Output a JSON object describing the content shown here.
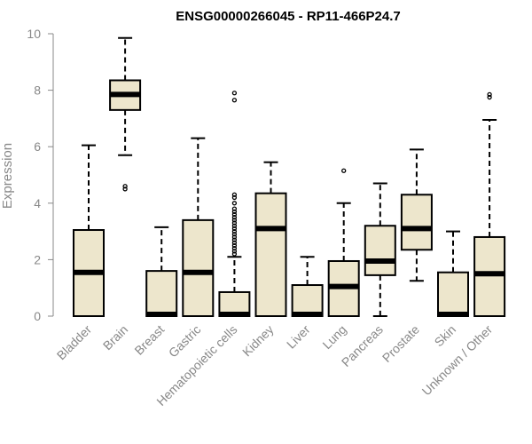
{
  "chart_data": {
    "type": "box",
    "title": "ENSG00000266045 - RP11-466P24.7",
    "xlabel": "",
    "ylabel": "Expression",
    "ylim": [
      0,
      10
    ],
    "yticks": [
      0,
      2,
      4,
      6,
      8,
      10
    ],
    "box_fill": "#ede6cc",
    "box_stroke": "#000000",
    "axis_color": "#888888",
    "categories": [
      "Bladder",
      "Brain",
      "Breast",
      "Gastric",
      "Hematopoietic cells",
      "Kidney",
      "Liver",
      "Lung",
      "Pancreas",
      "Prostate",
      "Skin",
      "Unknown / Other"
    ],
    "boxes": [
      {
        "name": "Bladder",
        "whisker_low": 0,
        "q1": 0,
        "median": 1.55,
        "q3": 3.05,
        "whisker_high": 6.05,
        "outliers": []
      },
      {
        "name": "Brain",
        "whisker_low": 5.7,
        "q1": 7.3,
        "median": 7.85,
        "q3": 8.35,
        "whisker_high": 9.85,
        "outliers": [
          4.5,
          4.6
        ]
      },
      {
        "name": "Breast",
        "whisker_low": 0,
        "q1": 0,
        "median": 0.02,
        "q3": 1.6,
        "whisker_high": 3.15,
        "outliers": []
      },
      {
        "name": "Gastric",
        "whisker_low": 0,
        "q1": 0,
        "median": 1.55,
        "q3": 3.4,
        "whisker_high": 6.3,
        "outliers": []
      },
      {
        "name": "Hematopoietic cells",
        "whisker_low": 0,
        "q1": 0,
        "median": 0.02,
        "q3": 0.85,
        "whisker_high": 2.1,
        "outliers": [
          2.2,
          2.3,
          2.4,
          2.5,
          2.6,
          2.7,
          2.8,
          2.9,
          3.0,
          3.1,
          3.2,
          3.3,
          3.4,
          3.5,
          3.6,
          3.7,
          3.8,
          4.0,
          4.2,
          4.3,
          7.65,
          7.9
        ]
      },
      {
        "name": "Kidney",
        "whisker_low": 0,
        "q1": 0,
        "median": 3.1,
        "q3": 4.35,
        "whisker_high": 5.45,
        "outliers": []
      },
      {
        "name": "Liver",
        "whisker_low": 0,
        "q1": 0,
        "median": 0.02,
        "q3": 1.1,
        "whisker_high": 2.1,
        "outliers": []
      },
      {
        "name": "Lung",
        "whisker_low": 0,
        "q1": 0,
        "median": 1.05,
        "q3": 1.95,
        "whisker_high": 4.0,
        "outliers": [
          5.15
        ]
      },
      {
        "name": "Pancreas",
        "whisker_low": 0,
        "q1": 1.45,
        "median": 1.95,
        "q3": 3.2,
        "whisker_high": 4.7,
        "outliers": []
      },
      {
        "name": "Prostate",
        "whisker_low": 1.25,
        "q1": 2.35,
        "median": 3.1,
        "q3": 4.3,
        "whisker_high": 5.9,
        "outliers": []
      },
      {
        "name": "Skin",
        "whisker_low": 0,
        "q1": 0,
        "median": 0.02,
        "q3": 1.55,
        "whisker_high": 3.0,
        "outliers": []
      },
      {
        "name": "Unknown / Other",
        "whisker_low": 0,
        "q1": 0,
        "median": 1.5,
        "q3": 2.8,
        "whisker_high": 6.95,
        "outliers": [
          7.75,
          7.85
        ]
      }
    ]
  }
}
